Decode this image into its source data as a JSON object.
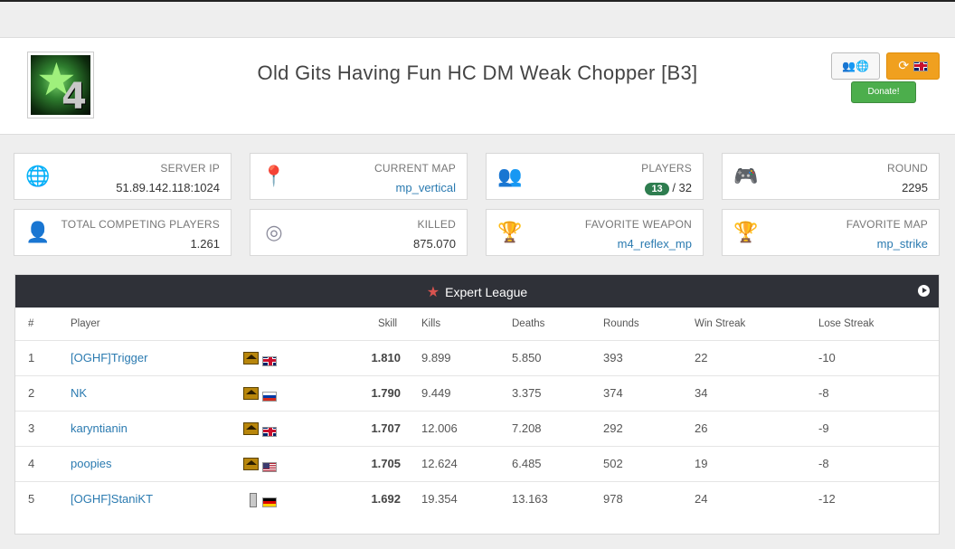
{
  "header": {
    "title": "Old Gits Having Fun HC DM Weak Chopper [B3]",
    "logo_digit": "4",
    "donate_label": "Donate!"
  },
  "stats": [
    {
      "label": "SERVER IP",
      "value": "51.89.142.118:1024",
      "icon": "globe-icon",
      "link": false
    },
    {
      "label": "CURRENT MAP",
      "value": "mp_vertical",
      "icon": "map-marker-icon",
      "link": true
    },
    {
      "label": "PLAYERS",
      "value_badge": "13",
      "value_suffix": "/ 32",
      "icon": "users-icon"
    },
    {
      "label": "ROUND",
      "value": "2295",
      "icon": "gamepad-icon",
      "link": false
    },
    {
      "label": "TOTAL COMPETING PLAYERS",
      "value": "1.261",
      "icon": "user-icon",
      "link": false
    },
    {
      "label": "KILLED",
      "value": "875.070",
      "icon": "target-icon",
      "link": false
    },
    {
      "label": "FAVORITE WEAPON",
      "value": "m4_reflex_mp",
      "icon": "trophy-icon",
      "link": true
    },
    {
      "label": "FAVORITE MAP",
      "value": "mp_strike",
      "icon": "trophy-icon",
      "link": true
    }
  ],
  "league": {
    "title": "Expert League",
    "columns": [
      "#",
      "Player",
      "Skill",
      "Kills",
      "Deaths",
      "Rounds",
      "Win Streak",
      "Lose Streak"
    ],
    "rows": [
      {
        "pos": "1",
        "player": "[OGHF]Trigger",
        "flag": "uk",
        "rank": "big",
        "skill": "1.810",
        "kills": "9.899",
        "deaths": "5.850",
        "rounds": "393",
        "win": "22",
        "lose": "-10"
      },
      {
        "pos": "2",
        "player": "NK",
        "flag": "ru",
        "rank": "big",
        "skill": "1.790",
        "kills": "9.449",
        "deaths": "3.375",
        "rounds": "374",
        "win": "34",
        "lose": "-8"
      },
      {
        "pos": "3",
        "player": "karyntianin",
        "flag": "uk",
        "rank": "big",
        "skill": "1.707",
        "kills": "12.006",
        "deaths": "7.208",
        "rounds": "292",
        "win": "26",
        "lose": "-9"
      },
      {
        "pos": "4",
        "player": "poopies",
        "flag": "us",
        "rank": "big",
        "skill": "1.705",
        "kills": "12.624",
        "deaths": "6.485",
        "rounds": "502",
        "win": "19",
        "lose": "-8"
      },
      {
        "pos": "5",
        "player": "[OGHF]StaniKT",
        "flag": "de",
        "rank": "small",
        "skill": "1.692",
        "kills": "19.354",
        "deaths": "13.163",
        "rounds": "978",
        "win": "24",
        "lose": "-12"
      }
    ]
  }
}
